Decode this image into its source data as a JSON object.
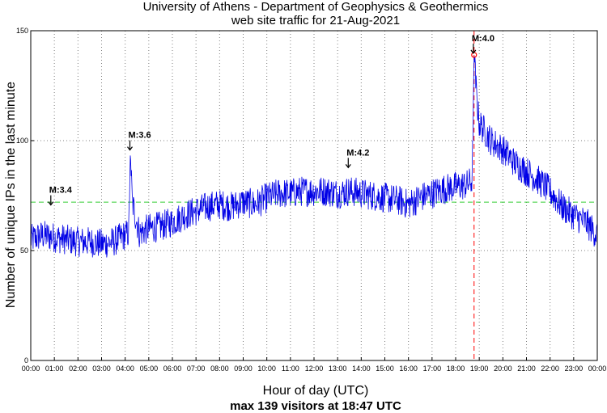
{
  "title_line_1": "University of Athens - Department of Geophysics & Geothermics",
  "title_line_2": "web site traffic for 21-Aug-2021",
  "chart_data": {
    "type": "line",
    "xlabel": "Hour of day (UTC)",
    "subtitle": "max 139 visitors at 18:47 UTC",
    "ylabel": "Number of unique IPs in the last minute",
    "xlim": [
      0,
      24
    ],
    "ylim": [
      0,
      150
    ],
    "grid": true,
    "x_ticks": [
      "00:00",
      "01:00",
      "02:00",
      "03:00",
      "04:00",
      "05:00",
      "06:00",
      "07:00",
      "08:00",
      "09:00",
      "10:00",
      "11:00",
      "12:00",
      "13:00",
      "14:00",
      "15:00",
      "16:00",
      "17:00",
      "18:00",
      "19:00",
      "20:00",
      "21:00",
      "22:00",
      "23:00",
      "00:00"
    ],
    "y_ticks": [
      0,
      50,
      100,
      150
    ],
    "reference_line_y": 72,
    "max_marker": {
      "x": 18.78,
      "y": 139
    },
    "traffic_profile": [
      [
        0.0,
        55
      ],
      [
        0.5,
        57
      ],
      [
        1.0,
        56
      ],
      [
        1.5,
        55
      ],
      [
        2.0,
        54
      ],
      [
        2.5,
        54
      ],
      [
        3.0,
        53
      ],
      [
        3.5,
        54
      ],
      [
        4.0,
        57
      ],
      [
        4.15,
        58
      ],
      [
        4.22,
        95
      ],
      [
        4.3,
        72
      ],
      [
        4.6,
        58
      ],
      [
        5.0,
        60
      ],
      [
        5.5,
        61
      ],
      [
        6.0,
        63
      ],
      [
        6.5,
        66
      ],
      [
        7.0,
        68
      ],
      [
        7.5,
        70
      ],
      [
        8.0,
        71
      ],
      [
        8.5,
        70
      ],
      [
        9.0,
        72
      ],
      [
        9.5,
        71
      ],
      [
        10.0,
        74
      ],
      [
        10.5,
        76
      ],
      [
        11.0,
        76
      ],
      [
        11.5,
        77
      ],
      [
        12.0,
        77
      ],
      [
        12.5,
        77
      ],
      [
        13.0,
        76
      ],
      [
        13.5,
        77
      ],
      [
        14.0,
        76
      ],
      [
        14.5,
        75
      ],
      [
        15.0,
        74
      ],
      [
        15.5,
        73
      ],
      [
        16.0,
        71
      ],
      [
        16.5,
        74
      ],
      [
        17.0,
        76
      ],
      [
        17.5,
        78
      ],
      [
        18.0,
        79
      ],
      [
        18.5,
        80
      ],
      [
        18.7,
        82
      ],
      [
        18.78,
        139
      ],
      [
        18.9,
        118
      ],
      [
        19.0,
        108
      ],
      [
        19.5,
        100
      ],
      [
        20.0,
        96
      ],
      [
        20.5,
        90
      ],
      [
        21.0,
        86
      ],
      [
        21.5,
        82
      ],
      [
        22.0,
        77
      ],
      [
        22.5,
        70
      ],
      [
        23.0,
        66
      ],
      [
        23.5,
        63
      ],
      [
        24.0,
        57
      ]
    ],
    "annotations": [
      {
        "label": "M:3.4",
        "x": 0.85,
        "y": 70
      },
      {
        "label": "M:3.6",
        "x": 4.2,
        "y": 95
      },
      {
        "label": "M:4.2",
        "x": 13.45,
        "y": 87
      },
      {
        "label": "M:4.0",
        "x": 18.75,
        "y": 139
      }
    ],
    "colors": {
      "series": "#0000e6",
      "reference": "#33cc33",
      "max_marker": "#ff0000",
      "grid": "#808080"
    }
  }
}
